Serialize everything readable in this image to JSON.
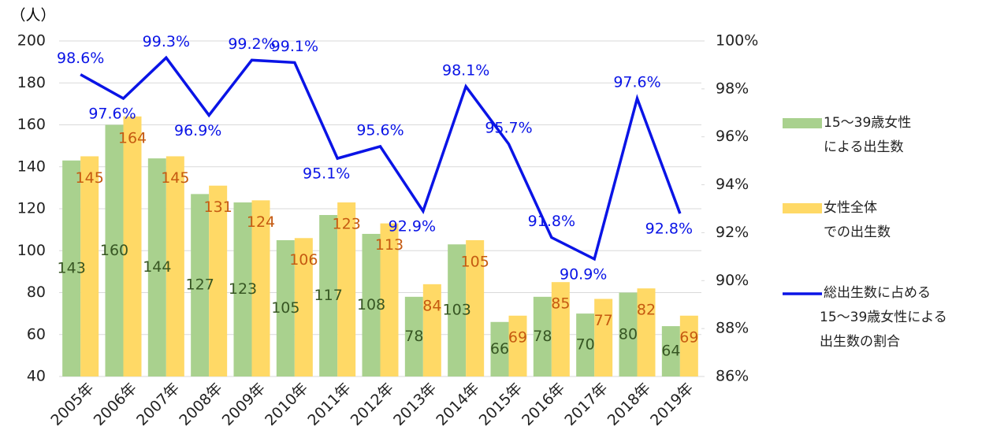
{
  "chart_data": {
    "type": "bar_line",
    "y_axis_label": "（人）",
    "categories": [
      "2005年",
      "2006年",
      "2007年",
      "2008年",
      "2009年",
      "2010年",
      "2011年",
      "2012年",
      "2013年",
      "2014年",
      "2015年",
      "2016年",
      "2017年",
      "2018年",
      "2019年"
    ],
    "series": [
      {
        "name": "15～39歳女性\nによる出生数",
        "color": "#a9d18e",
        "label_color": "#375623",
        "type": "bar",
        "values": [
          143,
          160,
          144,
          127,
          123,
          105,
          117,
          108,
          78,
          103,
          66,
          78,
          70,
          80,
          64
        ]
      },
      {
        "name": "女性全体\nでの出生数",
        "color": "#ffd966",
        "label_color": "#c55a11",
        "type": "bar",
        "values": [
          145,
          164,
          145,
          131,
          124,
          106,
          123,
          113,
          84,
          105,
          69,
          85,
          77,
          82,
          69
        ]
      },
      {
        "name": "総出生数に占める\n15～39歳女性による\n出生数の割合",
        "color": "#0a14e6",
        "type": "line",
        "axis": "y2",
        "values": [
          98.6,
          97.6,
          99.3,
          96.9,
          99.2,
          99.1,
          95.1,
          95.6,
          92.9,
          98.1,
          95.7,
          91.8,
          90.9,
          97.6,
          92.8
        ],
        "value_labels": [
          "98.6%",
          "97.6%",
          "99.3%",
          "96.9%",
          "99.2%",
          "99.1%",
          "95.1%",
          "95.6%",
          "92.9%",
          "98.1%",
          "95.7%",
          "91.8%",
          "90.9%",
          "97.6%",
          "92.8%"
        ]
      }
    ],
    "ylim": [
      40,
      200
    ],
    "yticks": [
      40,
      60,
      80,
      100,
      120,
      140,
      160,
      180,
      200
    ],
    "y2lim": [
      86,
      100
    ],
    "y2ticks": [
      {
        "value": 86,
        "label": "86%"
      },
      {
        "value": 88,
        "label": "88%"
      },
      {
        "value": 90,
        "label": "90%"
      },
      {
        "value": 92,
        "label": "92%"
      },
      {
        "value": 94,
        "label": "94%"
      },
      {
        "value": 96,
        "label": "96%"
      },
      {
        "value": 98,
        "label": "98%"
      },
      {
        "value": 100,
        "label": "100%"
      }
    ],
    "grid": true
  }
}
